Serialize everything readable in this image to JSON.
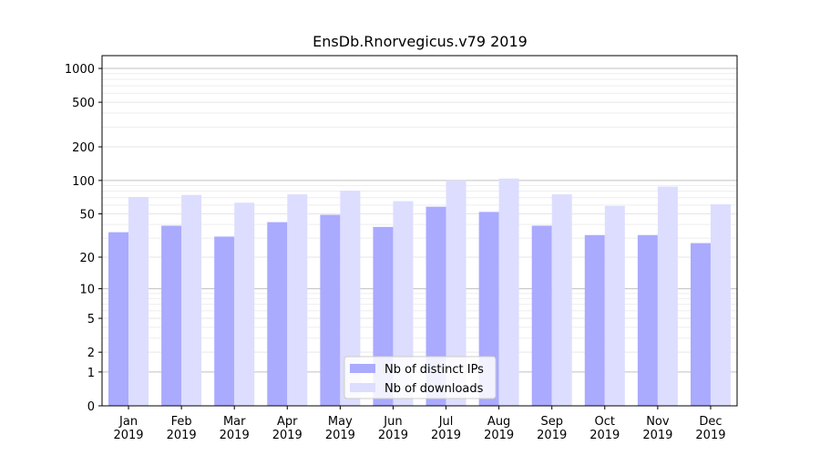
{
  "chart_data": {
    "type": "bar",
    "title": "EnsDb.Rnorvegicus.v79 2019",
    "xlabel": "",
    "ylabel": "",
    "y_scale": "symlog",
    "ylim": [
      0,
      1300
    ],
    "yticks": [
      0,
      1,
      2,
      5,
      10,
      20,
      50,
      100,
      200,
      500,
      1000
    ],
    "grid": "horizontal",
    "legend_position": "lower-center",
    "categories": [
      "Jan\n2019",
      "Feb\n2019",
      "Mar\n2019",
      "Apr\n2019",
      "May\n2019",
      "Jun\n2019",
      "Jul\n2019",
      "Aug\n2019",
      "Sep\n2019",
      "Oct\n2019",
      "Nov\n2019",
      "Dec\n2019"
    ],
    "series": [
      {
        "name": "Nb of distinct IPs",
        "color": "#aaaaff",
        "values": [
          34,
          39,
          31,
          42,
          49,
          38,
          58,
          52,
          39,
          32,
          32,
          27
        ]
      },
      {
        "name": "Nb of downloads",
        "color": "#ddddff",
        "values": [
          71,
          74,
          63,
          75,
          81,
          65,
          100,
          104,
          75,
          59,
          88,
          61
        ]
      }
    ]
  }
}
